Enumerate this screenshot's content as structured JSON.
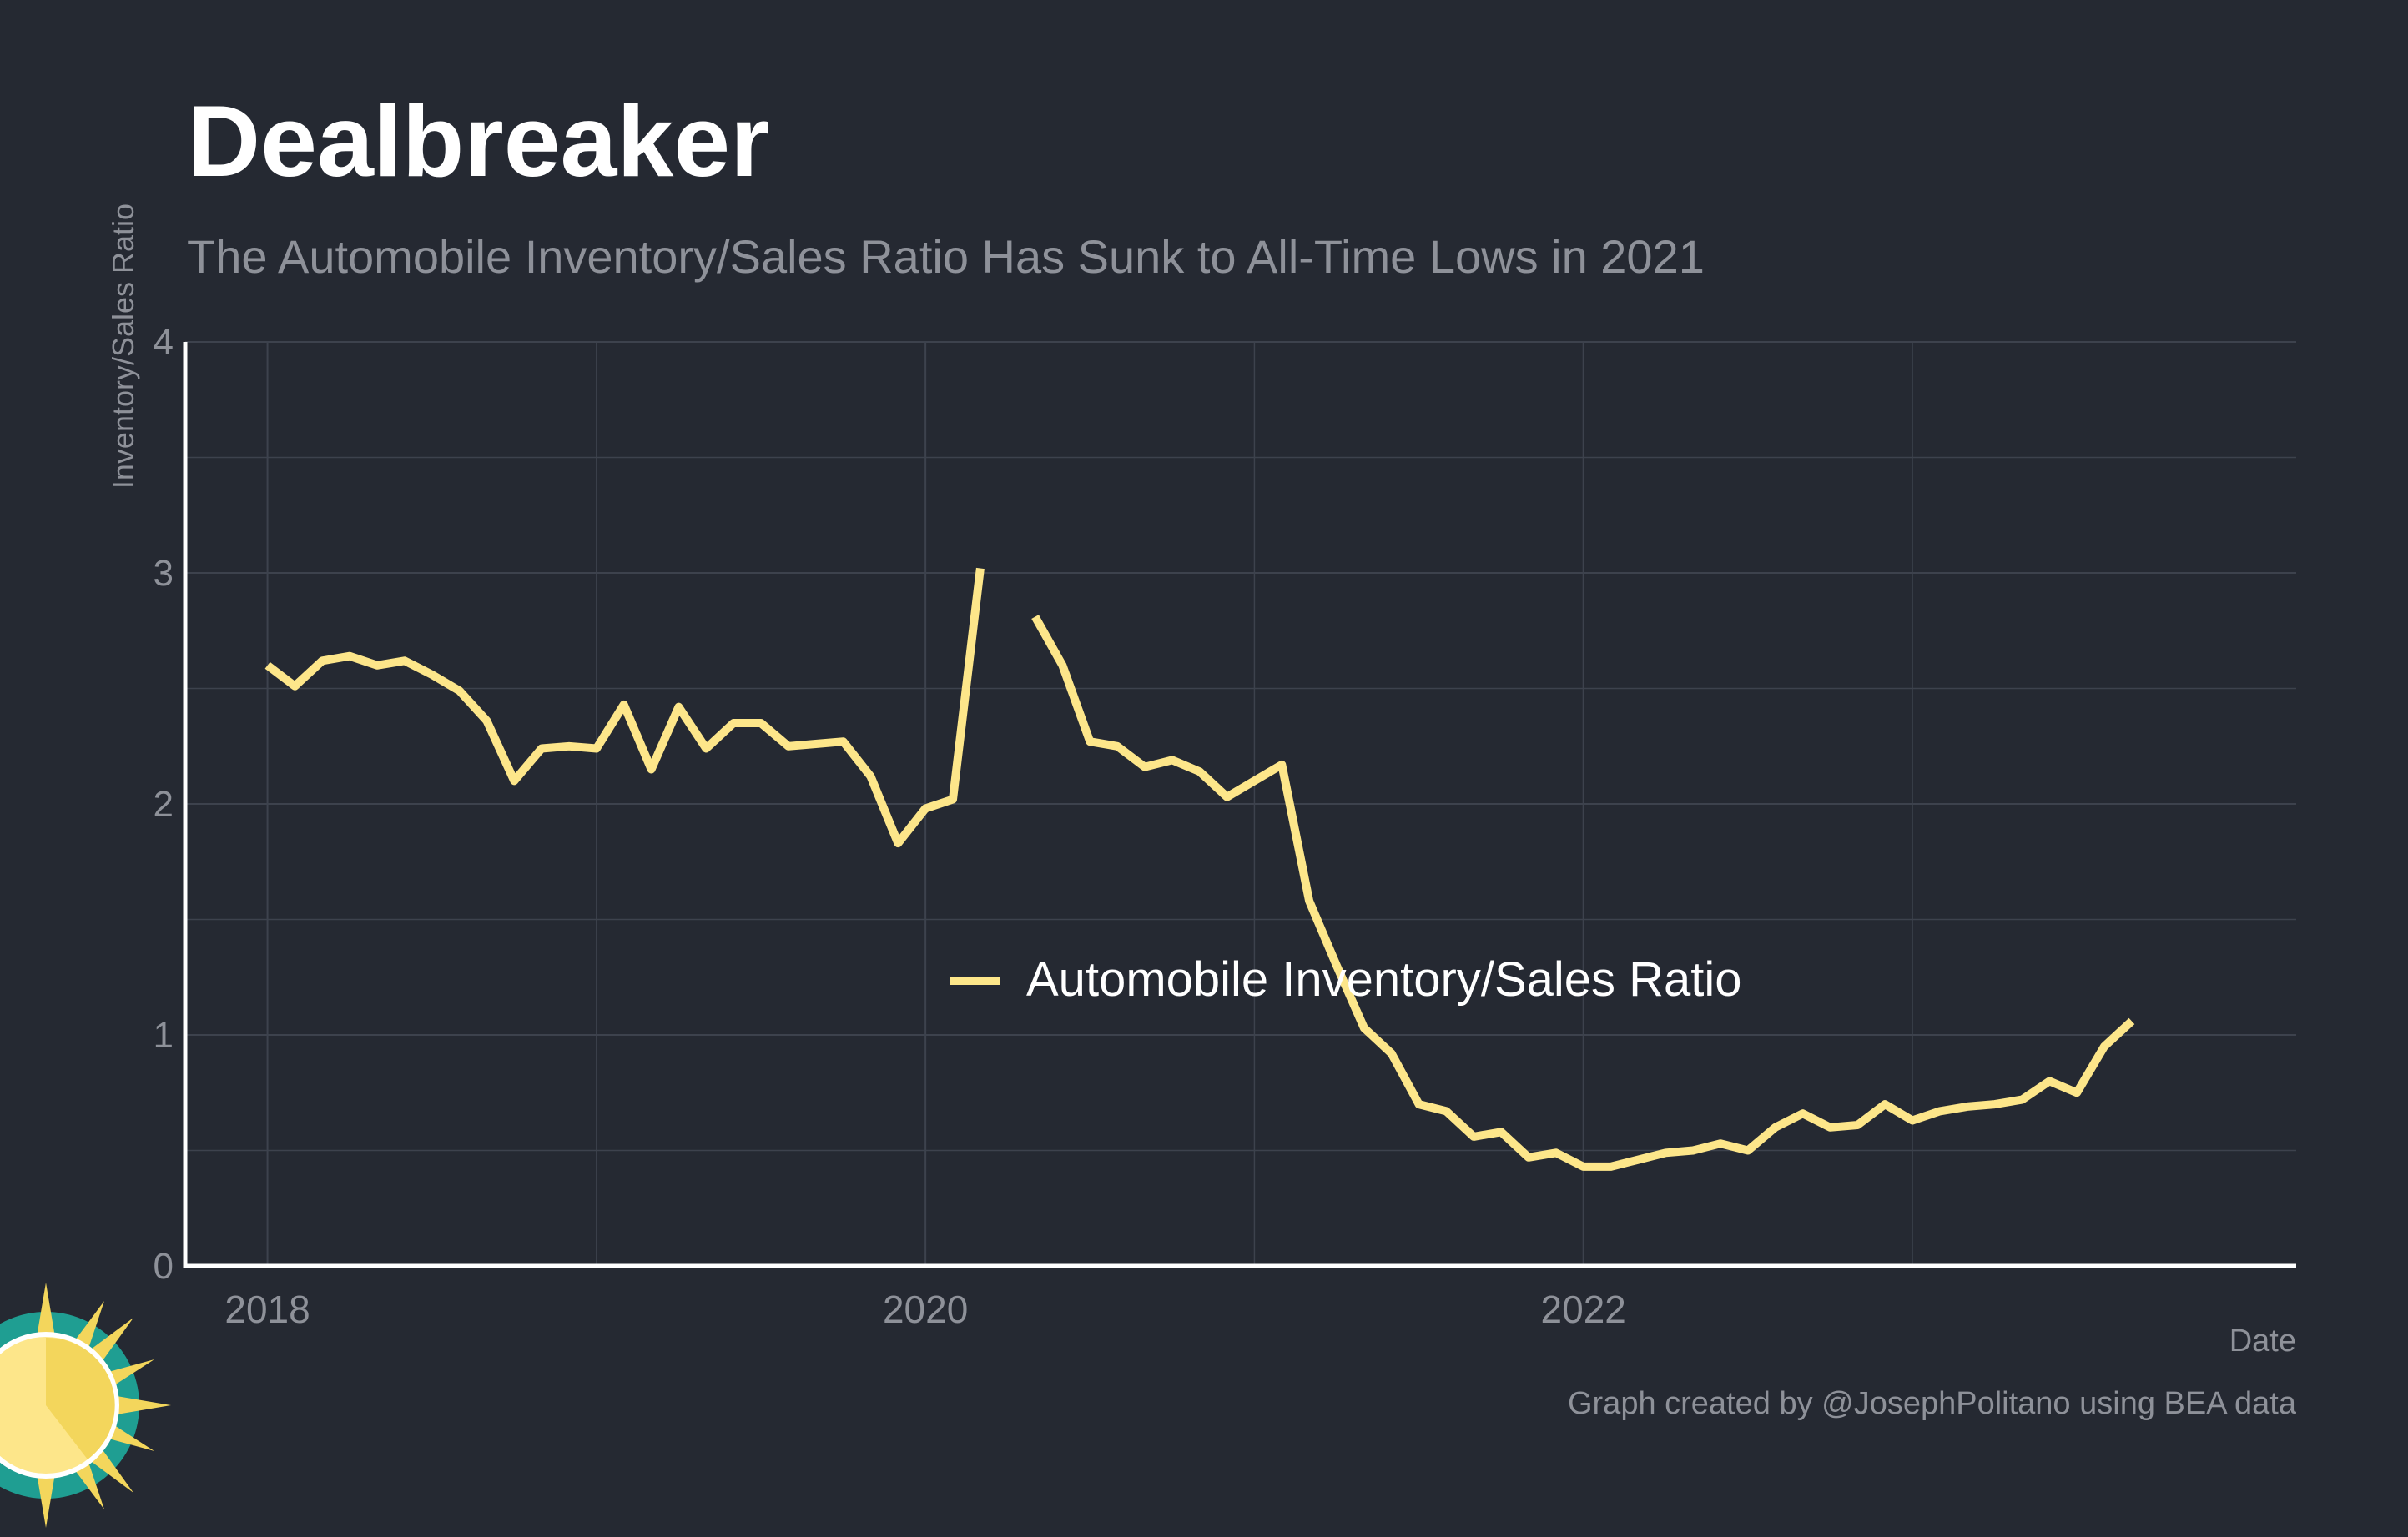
{
  "title": "Dealbreaker",
  "subtitle": "The Automobile Inventory/Sales Ratio Has Sunk to All-Time Lows in 2021",
  "caption": "Graph created by @JosephPolitano using BEA data",
  "logo_icon": "sun-icon",
  "colors": {
    "background": "#252932",
    "line": "#fde68a",
    "grid": "#3d424d",
    "axis": "#ffffff",
    "muted_text": "#8e9199"
  },
  "chart_data": {
    "type": "line",
    "title": "Dealbreaker",
    "subtitle": "The Automobile Inventory/Sales Ratio Has Sunk to All-Time Lows in 2021",
    "xlabel": "Date",
    "ylabel": "Inventory/Sales Ratio",
    "xlim": [
      "2017-10",
      "2024-03"
    ],
    "ylim": [
      0,
      4
    ],
    "x_ticks": [
      "2018",
      "2020",
      "2022"
    ],
    "y_ticks": [
      "0",
      "1",
      "2",
      "3",
      "4"
    ],
    "grid": true,
    "legend_position": "center",
    "series": [
      {
        "name": "Automobile Inventory/Sales Ratio",
        "color": "#fde68a",
        "x": [
          "2018-01",
          "2018-02",
          "2018-03",
          "2018-04",
          "2018-05",
          "2018-06",
          "2018-07",
          "2018-08",
          "2018-09",
          "2018-10",
          "2018-11",
          "2018-12",
          "2019-01",
          "2019-02",
          "2019-03",
          "2019-04",
          "2019-05",
          "2019-06",
          "2019-07",
          "2019-08",
          "2019-09",
          "2019-10",
          "2019-11",
          "2019-12",
          "2020-01",
          "2020-02",
          "2020-03",
          "2020-04",
          "2020-05",
          "2020-06",
          "2020-07",
          "2020-08",
          "2020-09",
          "2020-10",
          "2020-11",
          "2020-12",
          "2021-01",
          "2021-02",
          "2021-03",
          "2021-04",
          "2021-05",
          "2021-06",
          "2021-07",
          "2021-08",
          "2021-09",
          "2021-10",
          "2021-11",
          "2021-12",
          "2022-01",
          "2022-02",
          "2022-03",
          "2022-04",
          "2022-05",
          "2022-06",
          "2022-07",
          "2022-08",
          "2022-09",
          "2022-10",
          "2022-11",
          "2022-12",
          "2023-01",
          "2023-02",
          "2023-03",
          "2023-04",
          "2023-05",
          "2023-06",
          "2023-07",
          "2023-08",
          "2023-09",
          "2023-10"
        ],
        "values": [
          2.6,
          2.51,
          2.62,
          2.64,
          2.6,
          2.62,
          2.56,
          2.49,
          2.36,
          2.1,
          2.24,
          2.25,
          2.24,
          2.43,
          2.15,
          2.42,
          2.24,
          2.35,
          2.35,
          2.25,
          2.26,
          2.27,
          2.12,
          1.83,
          1.98,
          2.02,
          3.02,
          null,
          2.81,
          2.6,
          2.27,
          2.25,
          2.16,
          2.19,
          2.14,
          2.03,
          2.1,
          2.17,
          1.58,
          1.3,
          1.03,
          0.92,
          0.7,
          0.67,
          0.56,
          0.58,
          0.47,
          0.49,
          0.43,
          0.43,
          0.46,
          0.49,
          0.5,
          0.53,
          0.5,
          0.6,
          0.66,
          0.6,
          0.61,
          0.7,
          0.63,
          0.67,
          0.69,
          0.7,
          0.72,
          0.8,
          0.75,
          0.95,
          1.06,
          null
        ]
      }
    ]
  }
}
